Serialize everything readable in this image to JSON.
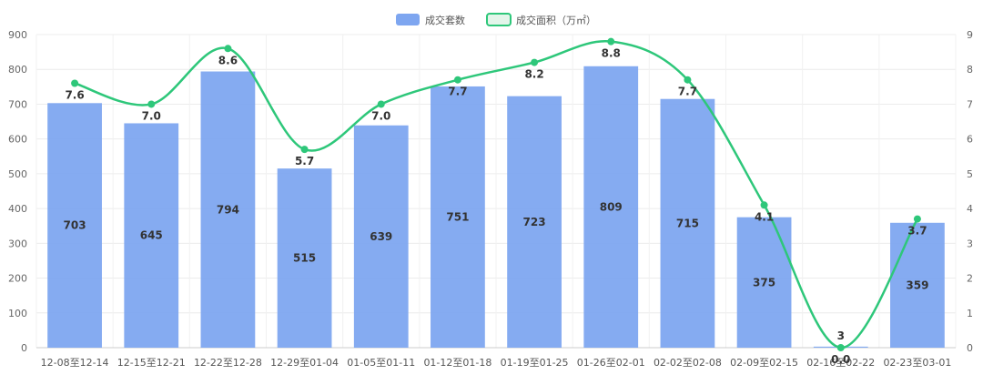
{
  "chart_data": {
    "type": "bar",
    "categories": [
      "12-08至12-14",
      "12-15至12-21",
      "12-22至12-28",
      "12-29至01-04",
      "01-05至01-11",
      "01-12至01-18",
      "01-19至01-25",
      "01-26至02-01",
      "02-02至02-08",
      "02-09至02-15",
      "02-16至02-22",
      "02-23至03-01"
    ],
    "series": [
      {
        "name": "成交套数",
        "type": "bar",
        "axis": "left",
        "color": "#7ea6f0",
        "values": [
          703,
          645,
          794,
          515,
          639,
          751,
          723,
          809,
          715,
          375,
          3,
          359
        ]
      },
      {
        "name": "成交面积（万㎡）",
        "type": "line",
        "axis": "right",
        "color": "#2ec77a",
        "values": [
          7.6,
          7.0,
          8.6,
          5.7,
          7.0,
          7.7,
          8.2,
          8.8,
          7.7,
          4.1,
          0.0,
          3.7
        ]
      }
    ],
    "y_left": {
      "min": 0,
      "max": 900,
      "ticks": [
        0,
        100,
        200,
        300,
        400,
        500,
        600,
        700,
        800,
        900
      ]
    },
    "y_right": {
      "min": 0,
      "max": 9,
      "ticks": [
        0,
        1,
        2,
        3,
        4,
        5,
        6,
        7,
        8,
        9
      ]
    },
    "line_label_decimals": 1,
    "legend_position": "top-center",
    "grid": true,
    "title": "",
    "xlabel": "",
    "ylabel": ""
  }
}
